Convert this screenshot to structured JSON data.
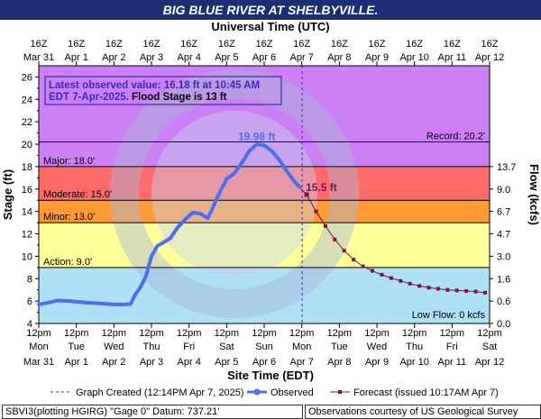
{
  "header": {
    "title": "BIG BLUE RIVER AT SHELBYVILLE.",
    "top_axis_title": "Universal Time (UTC)",
    "bottom_axis_title": "Site Time (EDT)",
    "left_axis_title": "Stage (ft)",
    "right_axis_title": "Flow (kcfs)"
  },
  "info_box": {
    "line1": "Latest observed value: 16.18 ft at 10:45 AM",
    "line2": "EDT 7-Apr-2025.",
    "line2b": "Flood Stage is 13 ft"
  },
  "legend": {
    "created": "Graph Created (12:14PM Apr 7, 2025)",
    "observed": "Observed",
    "forecast": "Forecast (issued 10:17AM Apr 7)"
  },
  "footer": {
    "left": "SBVI3(plotting HGIRG) \"Gage 0\" Datum: 737.21'",
    "right": "Observations courtesy of US Geological Survey"
  },
  "colors": {
    "title_bg": "#1c2f74",
    "plot_bg": "#aee0f8",
    "record_band": "#cc80f5",
    "major_band": "#ff6b6b",
    "moderate_band": "#ff9933",
    "minor_band": "#ffff99",
    "observed": "#4d6eef",
    "forecast": "#7a1448",
    "annotation": "#3a2ab8"
  },
  "chart_data": {
    "type": "line",
    "x_unit": "days since 2025-03-31 12:00 EDT",
    "ylim": [
      4,
      27
    ],
    "y_ticks": [
      4,
      6,
      8,
      10,
      12,
      14,
      16,
      18,
      20,
      22,
      24,
      26
    ],
    "flow_ticks": [
      {
        "stage": 4,
        "label": "0.0"
      },
      {
        "stage": 6,
        "label": "0.6"
      },
      {
        "stage": 8,
        "label": "1.6"
      },
      {
        "stage": 10,
        "label": "3.0"
      },
      {
        "stage": 12,
        "label": "4.7"
      },
      {
        "stage": 14,
        "label": "6.7"
      },
      {
        "stage": 16,
        "label": "9.0"
      },
      {
        "stage": 18,
        "label": "13.7"
      }
    ],
    "top_ticks": [
      {
        "top": "16Z",
        "bottom": "Mar 31"
      },
      {
        "top": "16Z",
        "bottom": "Apr 1"
      },
      {
        "top": "16Z",
        "bottom": "Apr 2"
      },
      {
        "top": "16Z",
        "bottom": "Apr 3"
      },
      {
        "top": "16Z",
        "bottom": "Apr 4"
      },
      {
        "top": "16Z",
        "bottom": "Apr 5"
      },
      {
        "top": "16Z",
        "bottom": "Apr 6"
      },
      {
        "top": "16Z",
        "bottom": "Apr 7"
      },
      {
        "top": "16Z",
        "bottom": "Apr 8"
      },
      {
        "top": "16Z",
        "bottom": "Apr 9"
      },
      {
        "top": "16Z",
        "bottom": "Apr 10"
      },
      {
        "top": "16Z",
        "bottom": "Apr 11"
      },
      {
        "top": "16Z",
        "bottom": "Apr 12"
      }
    ],
    "bottom_ticks": [
      {
        "time": "12pm",
        "day": "Mon",
        "date": "Mar 31"
      },
      {
        "time": "12pm",
        "day": "Tue",
        "date": "Apr 1"
      },
      {
        "time": "12pm",
        "day": "Wed",
        "date": "Apr 2"
      },
      {
        "time": "12pm",
        "day": "Thu",
        "date": "Apr 3"
      },
      {
        "time": "12pm",
        "day": "Fri",
        "date": "Apr 4"
      },
      {
        "time": "12pm",
        "day": "Sat",
        "date": "Apr 5"
      },
      {
        "time": "12pm",
        "day": "Sun",
        "date": "Apr 6"
      },
      {
        "time": "12pm",
        "day": "Mon",
        "date": "Apr 7"
      },
      {
        "time": "12pm",
        "day": "Tue",
        "date": "Apr 8"
      },
      {
        "time": "12pm",
        "day": "Wed",
        "date": "Apr 9"
      },
      {
        "time": "12pm",
        "day": "Thu",
        "date": "Apr 10"
      },
      {
        "time": "12pm",
        "day": "Fri",
        "date": "Apr 11"
      },
      {
        "time": "12pm",
        "day": "Sat",
        "date": "Apr 12"
      }
    ],
    "flood_categories": [
      {
        "name": "Record",
        "stage": 20.2,
        "label": "Record: 20.2'"
      },
      {
        "name": "Major",
        "stage": 18.0,
        "label": "Major: 18.0'"
      },
      {
        "name": "Moderate",
        "stage": 15.0,
        "label": "Moderate: 15.0'"
      },
      {
        "name": "Minor",
        "stage": 13.0,
        "label": "Minor: 13.0'"
      },
      {
        "name": "Action",
        "stage": 9.0,
        "label": "Action: 9.0'"
      }
    ],
    "low_flow_label": "Low Flow: 0 kcfs",
    "graph_created_x": 7.01,
    "series": [
      {
        "name": "Observed",
        "x": [
          0.0,
          0.3,
          0.5,
          0.8,
          1.0,
          1.3,
          1.6,
          2.0,
          2.3,
          2.45,
          2.55,
          2.7,
          2.85,
          3.0,
          3.15,
          3.3,
          3.5,
          3.7,
          3.9,
          4.1,
          4.3,
          4.5,
          4.6,
          4.8,
          5.0,
          5.2,
          5.4,
          5.6,
          5.8,
          6.0,
          6.2,
          6.4,
          6.6,
          6.8,
          6.94
        ],
        "y": [
          5.7,
          5.9,
          6.05,
          6.0,
          5.95,
          5.85,
          5.8,
          5.7,
          5.7,
          5.75,
          6.5,
          7.2,
          8.2,
          10.0,
          10.9,
          11.2,
          11.6,
          12.6,
          13.3,
          13.9,
          13.8,
          13.4,
          14.1,
          15.6,
          16.9,
          17.4,
          18.3,
          19.4,
          19.98,
          19.9,
          19.4,
          18.6,
          17.6,
          16.7,
          16.18
        ]
      },
      {
        "name": "Forecast",
        "x": [
          6.94,
          7.13,
          7.38,
          7.63,
          7.88,
          8.13,
          8.38,
          8.63,
          8.88,
          9.13,
          9.38,
          9.63,
          9.88,
          10.13,
          10.38,
          10.63,
          10.88,
          11.13,
          11.38,
          11.63,
          11.88
        ],
        "y": [
          16.18,
          15.5,
          14.0,
          12.7,
          11.5,
          10.5,
          9.7,
          9.1,
          8.7,
          8.35,
          8.05,
          7.8,
          7.55,
          7.35,
          7.2,
          7.1,
          7.0,
          6.95,
          6.9,
          6.85,
          6.75
        ]
      }
    ],
    "annotations": [
      {
        "label": "19.98 ft",
        "x": 5.8,
        "y": 19.98
      },
      {
        "label": "15.5 ft",
        "x": 7.13,
        "y": 15.5
      }
    ]
  }
}
